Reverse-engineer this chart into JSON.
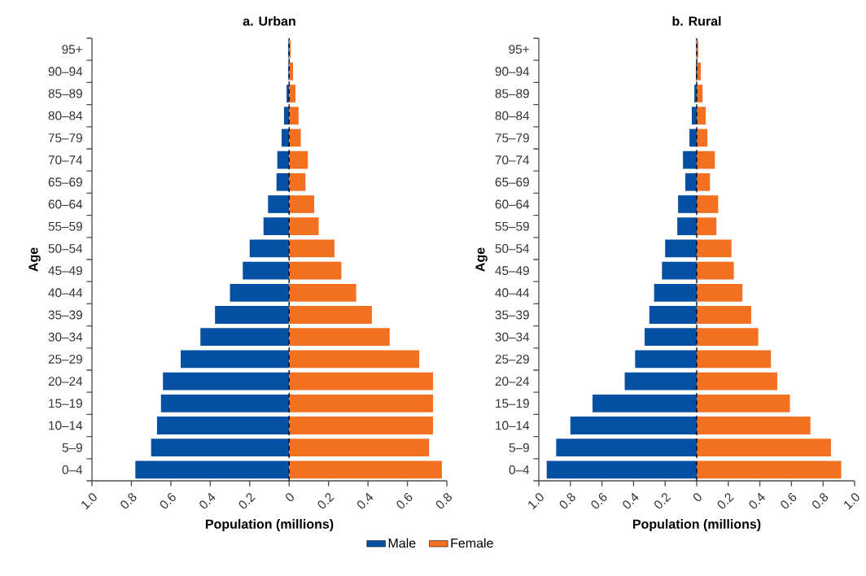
{
  "chart_data": [
    {
      "type": "bar",
      "orientation": "horizontal",
      "stacked": true,
      "title": "a. Urban",
      "xlabel": "Population (millions)",
      "ylabel": "Age",
      "legend": "bottom",
      "categories": [
        "95+",
        "90–94",
        "85–89",
        "80–84",
        "75–79",
        "70–74",
        "65–69",
        "60–64",
        "55–59",
        "50–54",
        "45–49",
        "40–44",
        "35–39",
        "30–34",
        "25–29",
        "20–24",
        "15–19",
        "10–14",
        "5–9",
        "0–4"
      ],
      "series": [
        {
          "name": "Male",
          "color": "#0450a4",
          "values": [
            -0.004,
            -0.004,
            -0.013,
            -0.026,
            -0.038,
            -0.06,
            -0.064,
            -0.107,
            -0.13,
            -0.2,
            -0.235,
            -0.3,
            -0.376,
            -0.45,
            -0.55,
            -0.64,
            -0.65,
            -0.67,
            -0.7,
            -0.78
          ]
        },
        {
          "name": "Female",
          "color": "#f37021",
          "values": [
            0.008,
            0.02,
            0.032,
            0.048,
            0.059,
            0.095,
            0.083,
            0.127,
            0.15,
            0.23,
            0.265,
            0.34,
            0.42,
            0.51,
            0.66,
            0.73,
            0.73,
            0.73,
            0.71,
            0.775
          ]
        }
      ],
      "xlim": [
        -1.0,
        0.8
      ],
      "xticks": [
        {
          "value": -1.0,
          "label": "1.0"
        },
        {
          "value": -0.8,
          "label": "0.8"
        },
        {
          "value": -0.6,
          "label": "0.6"
        },
        {
          "value": -0.4,
          "label": "0.4"
        },
        {
          "value": -0.2,
          "label": "0.2"
        },
        0,
        0.2,
        0.4,
        0.6,
        0.8
      ],
      "ref_lines": [
        {
          "axis": "x",
          "value": 0,
          "color": "#000000",
          "line_style": "dashed"
        }
      ]
    },
    {
      "type": "bar",
      "orientation": "horizontal",
      "stacked": true,
      "title": "b. Rural",
      "xlabel": "Population (millions)",
      "ylabel": "Age",
      "categories": [
        "95+",
        "90–94",
        "85–89",
        "80–84",
        "75–79",
        "70–74",
        "65–69",
        "60–64",
        "55–59",
        "50–54",
        "45–49",
        "40–44",
        "35–39",
        "30–34",
        "25–29",
        "20–24",
        "15–19",
        "10–14",
        "5–9",
        "0–4"
      ],
      "series": [
        {
          "color": "#0450a4",
          "values": [
            -0.003,
            -0.005,
            -0.015,
            -0.031,
            -0.046,
            -0.087,
            -0.072,
            -0.118,
            -0.123,
            -0.2,
            -0.22,
            -0.27,
            -0.3,
            -0.33,
            -0.39,
            -0.456,
            -0.66,
            -0.8,
            -0.89,
            -0.95
          ]
        },
        {
          "color": "#f37021",
          "values": [
            0.01,
            0.026,
            0.037,
            0.057,
            0.068,
            0.115,
            0.084,
            0.136,
            0.125,
            0.22,
            0.235,
            0.29,
            0.345,
            0.39,
            0.47,
            0.51,
            0.59,
            0.72,
            0.85,
            0.915
          ]
        }
      ],
      "xlim": [
        -1.0,
        1.0
      ],
      "xticks": [
        {
          "value": -1.0,
          "label": "1.0"
        },
        {
          "value": -0.8,
          "label": "0.8"
        },
        {
          "value": -0.6,
          "label": "0.6"
        },
        {
          "value": -0.4,
          "label": "0.4"
        },
        {
          "value": -0.2,
          "label": "0.2"
        },
        0,
        0.2,
        0.4,
        0.6,
        0.8,
        {
          "value": 1.0,
          "label": "1.0"
        }
      ],
      "ref_lines": [
        {
          "axis": "x",
          "value": 0,
          "color": "#000000",
          "line_style": "dashed"
        }
      ]
    }
  ]
}
